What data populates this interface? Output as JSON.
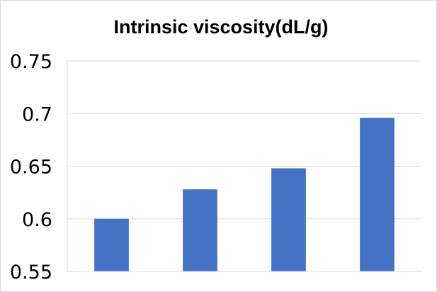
{
  "chart_data": {
    "type": "bar",
    "title": "Intrinsic viscosity(dL/g)",
    "categories": [
      "",
      "",
      "",
      ""
    ],
    "values": [
      0.6,
      0.628,
      0.648,
      0.696
    ],
    "ylim": [
      0.55,
      0.75
    ],
    "yticks": [
      0.55,
      0.6,
      0.65,
      0.7,
      0.75
    ],
    "ytick_labels": [
      "0.55",
      "0.6",
      "0.65",
      "0.7",
      "0.75"
    ],
    "xlabel": "",
    "ylabel": "",
    "grid": true,
    "legend": "none",
    "bar_color": "#4472c4",
    "grid_color": "#d9d9d9"
  }
}
